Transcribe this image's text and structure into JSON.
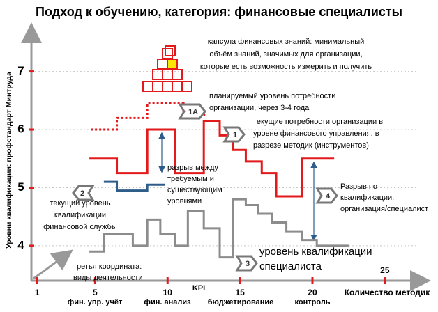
{
  "chart_data": {
    "type": "line",
    "title": "Подход к обучению,  категория: финансовые специалисты",
    "y_label": "Уровни квалификации: профстандарт Минтруда",
    "x_label": "Количество методик",
    "xlim": [
      0.6,
      27.8
    ],
    "xticks": [
      1,
      5,
      10,
      15,
      20,
      25
    ],
    "ylim": [
      3.4,
      7.75
    ],
    "yticks": [
      4,
      5,
      6,
      7
    ],
    "grid": true,
    "activity_labels": [
      "фин. упр. учёт",
      "фин. анализ",
      "KPI",
      "бюджетирование",
      "контроль"
    ],
    "series": [
      {
        "color": "#e31a1c",
        "style": "solid",
        "x": [
          4.6,
          6.5,
          6.5,
          8.6,
          8.6,
          10.5,
          10.5,
          12.5,
          12.5,
          13.6,
          13.6,
          14.5,
          14.5,
          15.4,
          15.4,
          16.5,
          16.5,
          17.5,
          17.5,
          19.3,
          19.3,
          21.5
        ],
        "values": [
          5.5,
          5.5,
          5.25,
          5.25,
          6.0,
          6.0,
          5.25,
          5.25,
          6.15,
          6.15,
          5.9,
          5.9,
          5.65,
          5.65,
          5.45,
          5.45,
          5.25,
          5.25,
          4.85,
          4.85,
          5.5,
          5.5
        ]
      },
      {
        "color": "#e31a1c",
        "style": "dotted",
        "x": [
          4.7,
          6.5,
          6.5,
          8.6,
          8.6,
          11.1,
          11.1,
          12.6
        ],
        "values": [
          6.0,
          6.0,
          6.2,
          6.2,
          6.45,
          6.45,
          6.25,
          6.25
        ]
      },
      {
        "color": "#2e5d8a",
        "style": "solid",
        "x": [
          5.6,
          6.5,
          6.5,
          8.6,
          8.6,
          9.8
        ],
        "values": [
          5.1,
          5.1,
          4.95,
          4.95,
          5.05,
          5.05
        ]
      },
      {
        "color": "#8c8c8c",
        "style": "solid",
        "x": [
          4.6,
          5.6,
          5.6,
          7.6,
          7.6,
          8.6,
          8.6,
          9.5,
          9.5,
          10.5,
          10.5,
          11.4,
          11.4,
          12.5,
          12.5,
          13.6,
          13.6,
          14.5,
          14.5,
          15.4,
          15.4,
          16.25,
          16.25,
          17.2,
          17.2,
          18.2,
          18.2,
          19.3,
          19.3,
          20.3,
          20.3,
          22.5
        ],
        "values": [
          3.9,
          3.9,
          4.2,
          4.2,
          4.0,
          4.0,
          4.45,
          4.45,
          4.2,
          4.2,
          4.0,
          4.0,
          4.6,
          4.6,
          4.3,
          4.3,
          3.8,
          3.8,
          4.8,
          4.8,
          4.7,
          4.7,
          4.55,
          4.55,
          4.4,
          4.4,
          4.25,
          4.25,
          4.1,
          4.1,
          4.0,
          4.0
        ]
      }
    ],
    "annotations": [
      [
        "капсула финансовых знаний: минимальный",
        "объём знаний, значимых для организации,",
        "которые есть возможность измерить и получить"
      ],
      [
        "планируемый уровень потребности",
        "организации, через 3-4 года"
      ],
      [
        "текущие потребности организации в",
        "уровне финансового управления, в",
        "разрезе методик (инструментов)"
      ],
      [
        "разрыв между",
        "требуемым и",
        "существующим",
        "уровнями"
      ],
      [
        "текущий уровень",
        "квалификации",
        "финансовой службы"
      ],
      [
        "Разрыв по",
        "квалификации:",
        "организация/специалист"
      ],
      [
        "уровень квалификации",
        "специалиста"
      ],
      [
        "третья координата:",
        "виды деятельности"
      ]
    ],
    "badges": [
      "1А",
      "1",
      "2",
      "4",
      "3"
    ]
  }
}
